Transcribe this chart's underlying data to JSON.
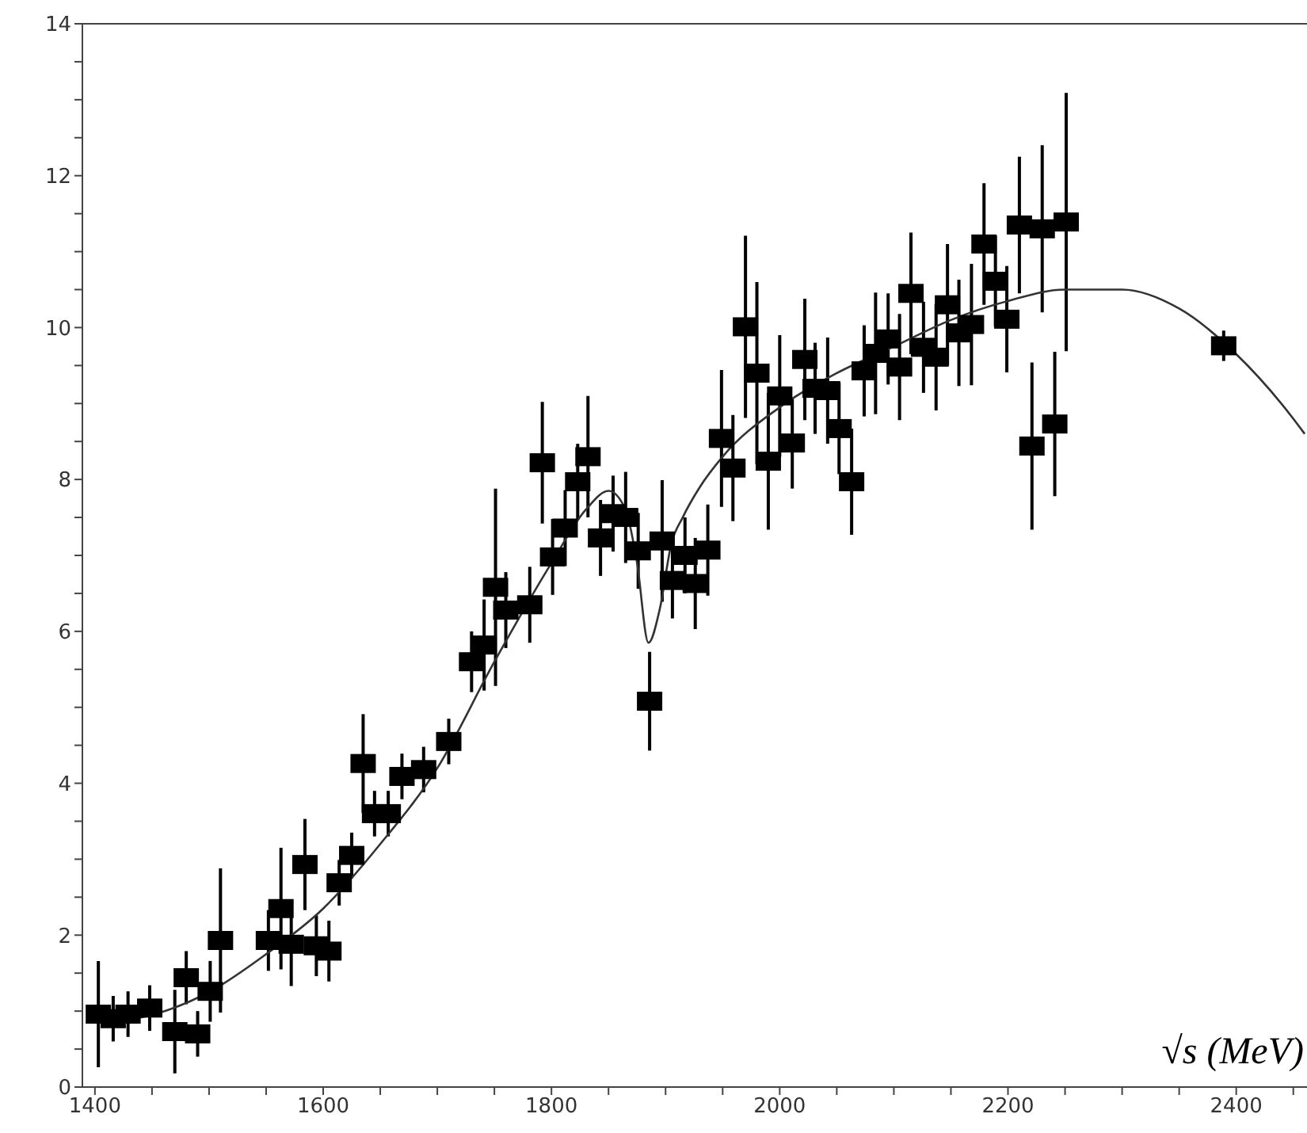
{
  "chart_data": {
    "type": "scatter",
    "xlabel": "√s (MeV)",
    "xlim": [
      1389,
      2462
    ],
    "ylim": [
      0,
      14
    ],
    "xticks": [
      1400,
      {
        "value": 1450,
        "label": null
      },
      1600,
      {
        "value": 1500,
        "label": null
      },
      {
        "value": 1550,
        "label": null
      },
      {
        "value": 1650,
        "label": null
      },
      {
        "value": 1700,
        "label": null
      },
      {
        "value": 1750,
        "label": null
      },
      1800,
      {
        "value": 1850,
        "label": null
      },
      {
        "value": 1900,
        "label": null
      },
      {
        "value": 1950,
        "label": null
      },
      2000,
      {
        "value": 2050,
        "label": null
      },
      {
        "value": 2100,
        "label": null
      },
      {
        "value": 2150,
        "label": null
      },
      2200,
      {
        "value": 2250,
        "label": null
      },
      {
        "value": 2300,
        "label": null
      },
      {
        "value": 2350,
        "label": null
      },
      2400,
      {
        "value": 2450,
        "label": null
      }
    ],
    "yticks": [
      0,
      {
        "value": 0.5,
        "label": null
      },
      {
        "value": 1,
        "label": null
      },
      {
        "value": 1.5,
        "label": null
      },
      2,
      {
        "value": 2.5,
        "label": null
      },
      {
        "value": 3,
        "label": null
      },
      {
        "value": 3.5,
        "label": null
      },
      4,
      {
        "value": 4.5,
        "label": null
      },
      {
        "value": 5,
        "label": null
      },
      {
        "value": 5.5,
        "label": null
      },
      6,
      {
        "value": 6.5,
        "label": null
      },
      {
        "value": 7,
        "label": null
      },
      {
        "value": 7.5,
        "label": null
      },
      8,
      {
        "value": 8.5,
        "label": null
      },
      {
        "value": 9,
        "label": null
      },
      {
        "value": 9.5,
        "label": null
      },
      10,
      {
        "value": 10.5,
        "label": null
      },
      {
        "value": 11,
        "label": null
      },
      {
        "value": 11.5,
        "label": null
      },
      12,
      {
        "value": 12.5,
        "label": null
      },
      {
        "value": 13,
        "label": null
      },
      {
        "value": 13.5,
        "label": null
      },
      14
    ],
    "grid": false,
    "legend": false,
    "series": [
      {
        "marker": "square",
        "color": "#000000",
        "x": [
          1403,
          1416,
          1429,
          1448,
          1470,
          1480,
          1490,
          1501,
          1510,
          1552,
          1563,
          1572,
          1584,
          1594,
          1605,
          1614,
          1625,
          1635,
          1645,
          1657,
          1669,
          1688,
          1710,
          1730,
          1741,
          1751,
          1760,
          1781,
          1792,
          1801,
          1812,
          1823,
          1832,
          1843,
          1854,
          1865,
          1876,
          1886,
          1897,
          1906,
          1917,
          1926,
          1937,
          1949,
          1959,
          1970,
          1980,
          1990,
          2000,
          2011,
          2022,
          2031,
          2042,
          2052,
          2063,
          2074,
          2084,
          2095,
          2105,
          2115,
          2126,
          2137,
          2147,
          2157,
          2168,
          2179,
          2189,
          2199,
          2210,
          2221,
          2230,
          2241,
          2251,
          2389
        ],
        "values": [
          0.96,
          0.9,
          0.96,
          1.04,
          0.73,
          1.44,
          0.7,
          1.26,
          1.93,
          1.93,
          2.35,
          1.88,
          2.93,
          1.86,
          1.79,
          2.69,
          3.05,
          4.26,
          3.6,
          3.6,
          4.09,
          4.18,
          4.55,
          5.6,
          5.82,
          6.58,
          6.28,
          6.35,
          8.22,
          6.98,
          7.36,
          7.97,
          8.3,
          7.23,
          7.55,
          7.5,
          7.06,
          5.08,
          7.19,
          6.67,
          7.0,
          6.63,
          7.07,
          8.54,
          8.15,
          10.01,
          9.4,
          8.24,
          9.1,
          8.48,
          9.58,
          9.2,
          9.17,
          8.67,
          7.97,
          9.43,
          9.66,
          9.85,
          9.48,
          10.45,
          9.74,
          9.61,
          10.3,
          9.93,
          10.04,
          11.1,
          10.61,
          10.11,
          11.35,
          8.44,
          11.3,
          8.73,
          11.39,
          9.76
        ],
        "errors": [
          0.7,
          0.3,
          0.3,
          0.3,
          0.55,
          0.35,
          0.3,
          0.4,
          0.95,
          0.4,
          0.8,
          0.55,
          0.6,
          0.4,
          0.4,
          0.3,
          0.3,
          0.65,
          0.3,
          0.3,
          0.3,
          0.3,
          0.3,
          0.4,
          0.6,
          1.3,
          0.5,
          0.5,
          0.8,
          0.5,
          0.5,
          0.5,
          0.8,
          0.5,
          0.5,
          0.6,
          0.5,
          0.65,
          0.8,
          0.5,
          0.5,
          0.6,
          0.6,
          0.9,
          0.7,
          1.2,
          1.2,
          0.9,
          0.8,
          0.6,
          0.8,
          0.6,
          0.7,
          0.6,
          0.7,
          0.6,
          0.8,
          0.6,
          0.7,
          0.8,
          0.6,
          0.7,
          0.8,
          0.7,
          0.8,
          0.8,
          0.6,
          0.7,
          0.9,
          1.1,
          1.1,
          0.95,
          1.7,
          0.2
        ]
      },
      {
        "type": "line",
        "color": "#333333",
        "x": [
          1400,
          1450,
          1500,
          1550,
          1600,
          1650,
          1700,
          1750,
          1800,
          1830,
          1850,
          1865,
          1875,
          1885,
          1895,
          1905,
          1915,
          1930,
          1950,
          2000,
          2050,
          2100,
          2150,
          2200,
          2250,
          2300,
          2350,
          2400,
          2450,
          2460
        ],
        "values": [
          0.85,
          0.95,
          1.25,
          1.75,
          2.35,
          3.2,
          4.2,
          5.6,
          6.9,
          7.6,
          7.85,
          7.6,
          6.9,
          5.85,
          6.3,
          7.15,
          7.5,
          7.9,
          8.3,
          8.95,
          9.4,
          9.75,
          10.1,
          10.35,
          10.5,
          10.5,
          10.25,
          9.65,
          8.8,
          8.6
        ]
      }
    ]
  }
}
